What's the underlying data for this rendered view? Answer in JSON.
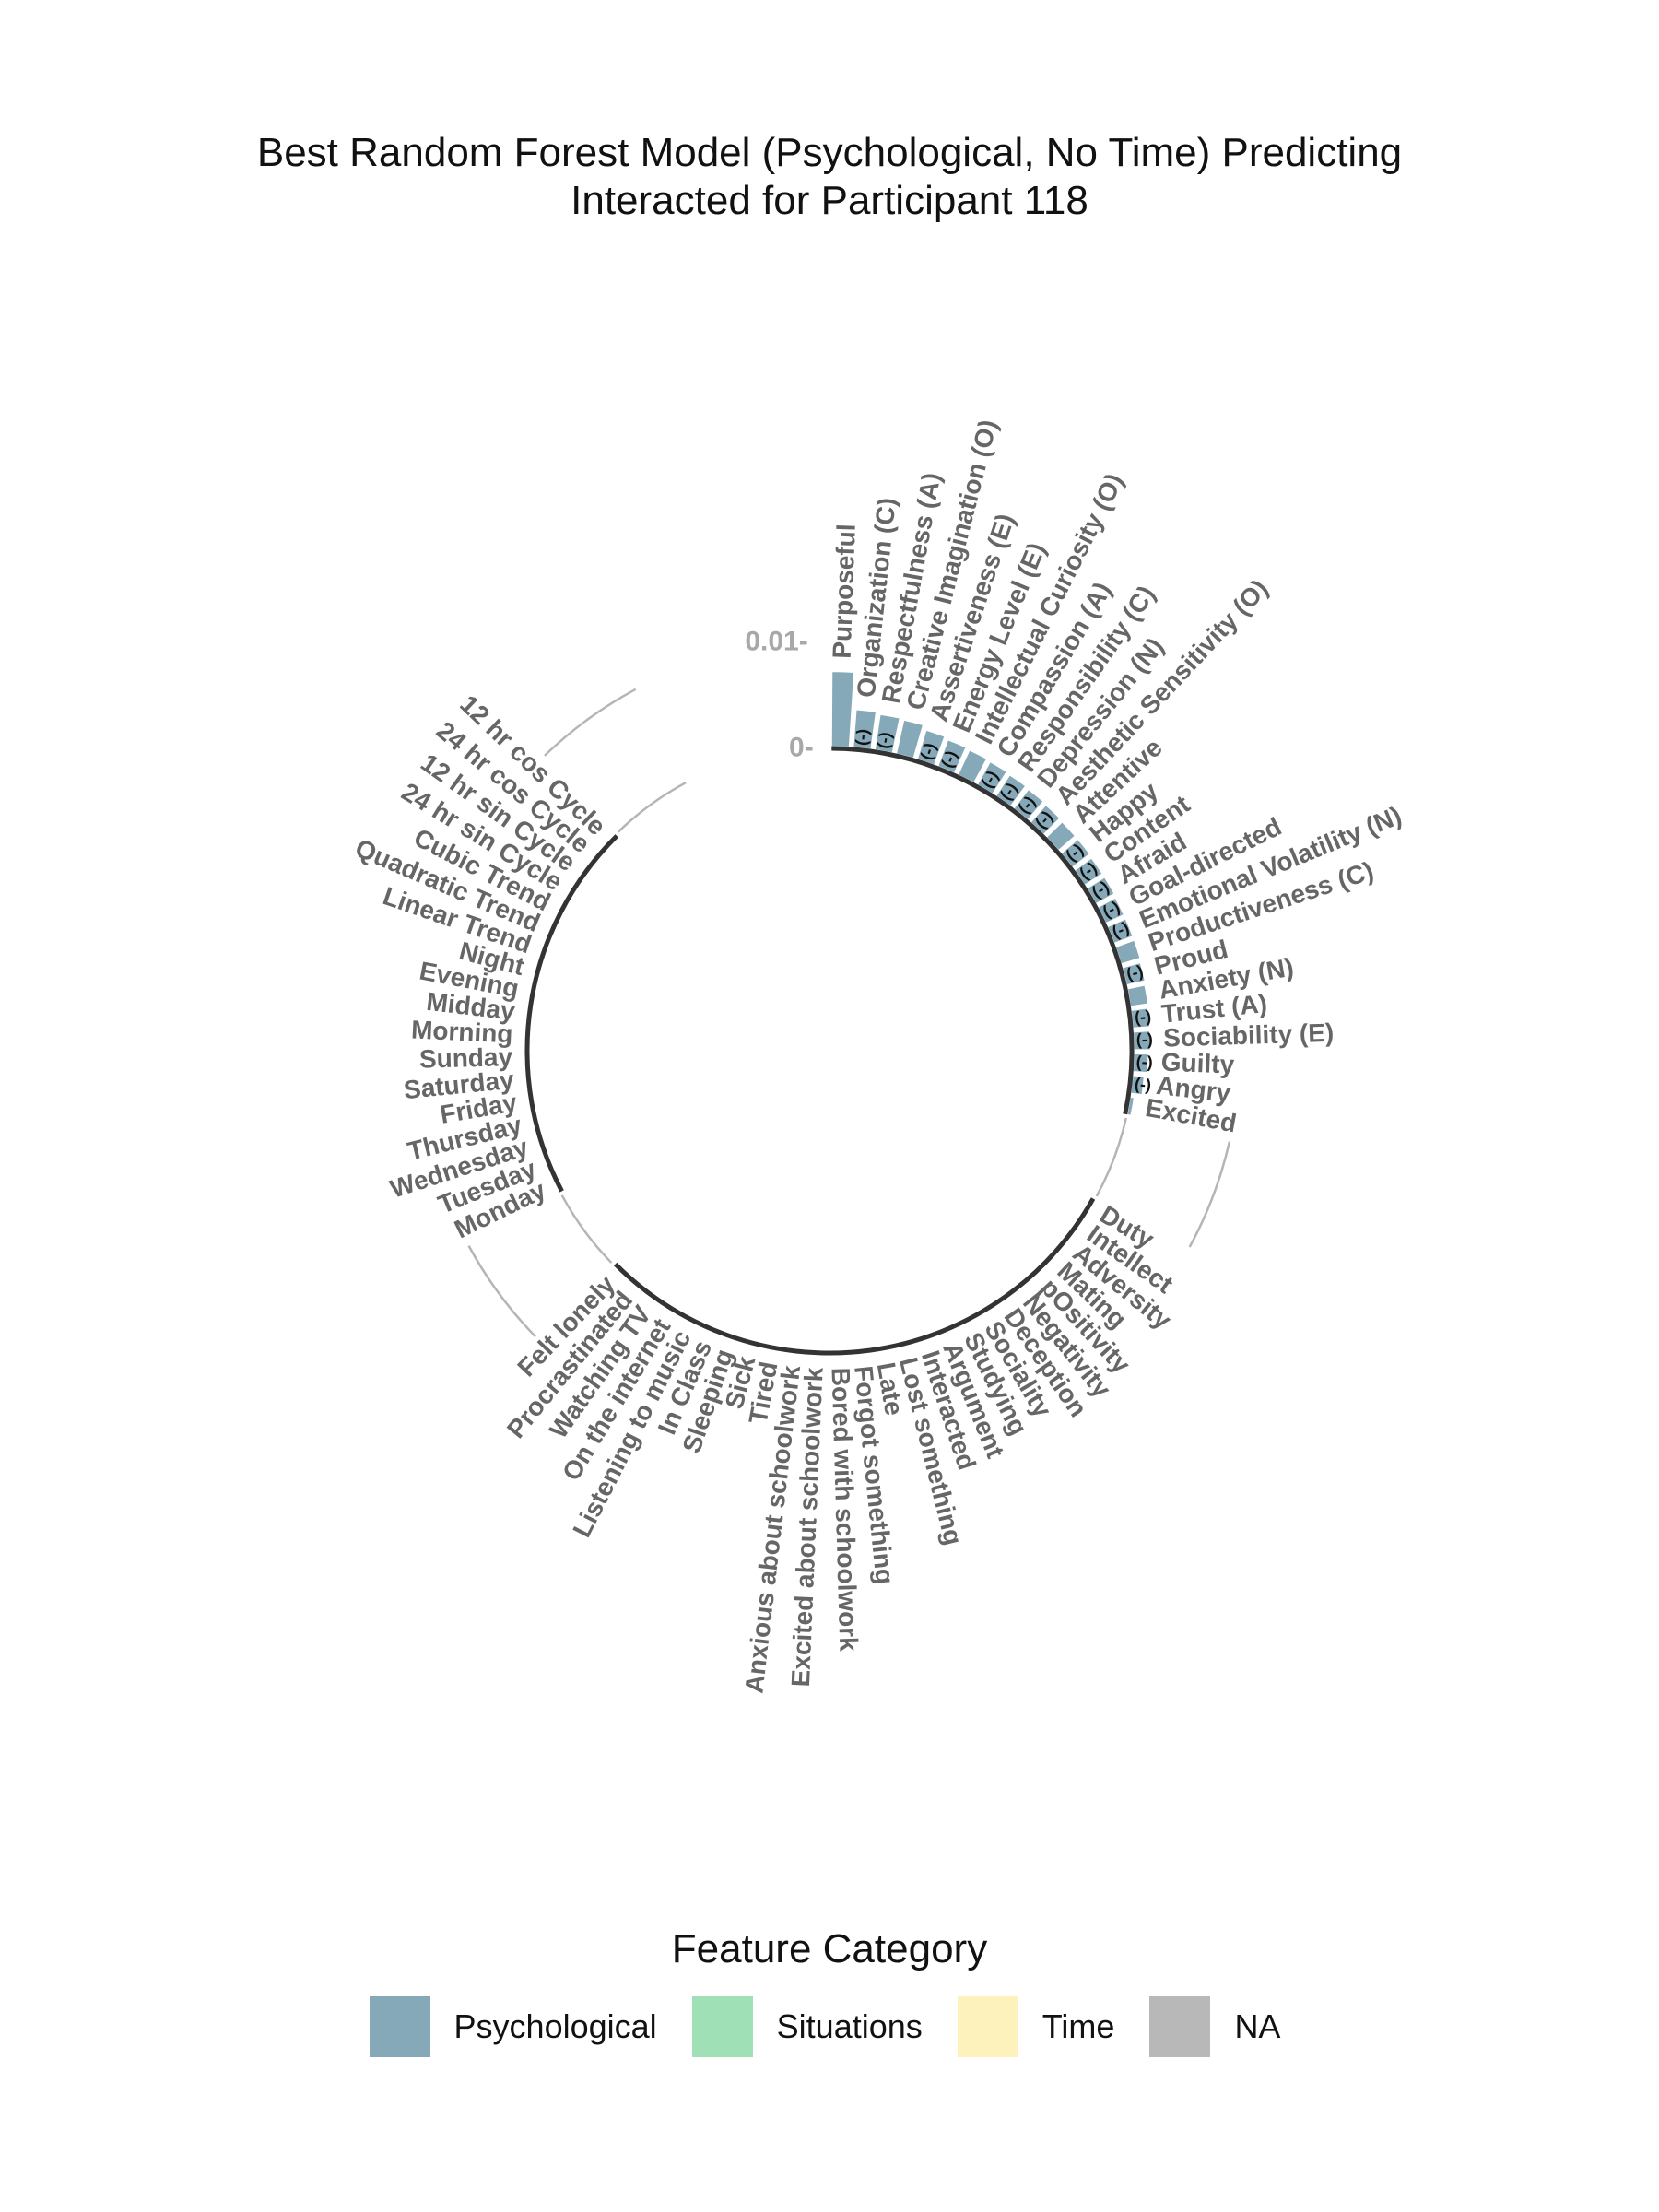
{
  "chart_title_line1": "Best Random Forest Model (Psychological, No Time) Predicting",
  "chart_title_line2": "Interacted for Participant 118",
  "legend": {
    "title": "Feature Category",
    "items": [
      {
        "label": "Psychological",
        "color": "#86a9b9"
      },
      {
        "label": "Situations",
        "color": "#9fe0b6"
      },
      {
        "label": "Time",
        "color": "#fdf1bc"
      },
      {
        "label": "NA",
        "color": "#b8b8b8"
      }
    ]
  },
  "chart_data": {
    "type": "bar",
    "coordinate": "polar",
    "title": "Best Random Forest Model (Psychological, No Time) Predicting Interacted for Participant 118",
    "radial_ticks": [
      {
        "value": 0,
        "label": "0-"
      },
      {
        "value": 0.01,
        "label": "0.01-"
      }
    ],
    "ylim": [
      0,
      0.01
    ],
    "groups": [
      {
        "category": "Psychological",
        "features": [
          {
            "name": "Purposeful",
            "value": 0.0071,
            "sign": ""
          },
          {
            "name": "Organization (C)",
            "value": 0.0036,
            "sign": "(-)"
          },
          {
            "name": "Respectfulness (A)",
            "value": 0.0034,
            "sign": "(-)"
          },
          {
            "name": "Creative Imagination (O)",
            "value": 0.0033,
            "sign": ""
          },
          {
            "name": "Assertiveness (E)",
            "value": 0.0029,
            "sign": "(-)"
          },
          {
            "name": "Energy Level (E)",
            "value": 0.0027,
            "sign": "(-)"
          },
          {
            "name": "Intellectual Curiosity (O)",
            "value": 0.0026,
            "sign": ""
          },
          {
            "name": "Compassion (A)",
            "value": 0.0025,
            "sign": "(-)"
          },
          {
            "name": "Responsibility (C)",
            "value": 0.0024,
            "sign": "(-)"
          },
          {
            "name": "Depression (N)",
            "value": 0.0023,
            "sign": "(-)"
          },
          {
            "name": "Aesthetic Sensitivity (O)",
            "value": 0.0022,
            "sign": "(-)"
          },
          {
            "name": "Attentive",
            "value": 0.0021,
            "sign": ""
          },
          {
            "name": "Happy",
            "value": 0.0021,
            "sign": "(-)"
          },
          {
            "name": "Content",
            "value": 0.002,
            "sign": "(-)"
          },
          {
            "name": "Afraid",
            "value": 0.002,
            "sign": "(-)"
          },
          {
            "name": "Goal-directed",
            "value": 0.0019,
            "sign": "(-)"
          },
          {
            "name": "Emotional Volatility (N)",
            "value": 0.0019,
            "sign": "(-)"
          },
          {
            "name": "Productiveness (C)",
            "value": 0.0019,
            "sign": ""
          },
          {
            "name": "Proud",
            "value": 0.0018,
            "sign": "(-)"
          },
          {
            "name": "Anxiety (N)",
            "value": 0.0017,
            "sign": ""
          },
          {
            "name": "Trust (A)",
            "value": 0.0016,
            "sign": "(-)"
          },
          {
            "name": "Sociability (E)",
            "value": 0.0016,
            "sign": "(-)"
          },
          {
            "name": "Guilty",
            "value": 0.0014,
            "sign": "(-)"
          },
          {
            "name": "Angry",
            "value": 0.0011,
            "sign": "(-)"
          },
          {
            "name": "Excited",
            "value": 0.0004,
            "sign": ""
          }
        ]
      },
      {
        "category": "Situations",
        "features": [
          {
            "name": "Duty",
            "value": 0,
            "sign": ""
          },
          {
            "name": "Intellect",
            "value": 0,
            "sign": ""
          },
          {
            "name": "Adversity",
            "value": 0,
            "sign": ""
          },
          {
            "name": "Mating",
            "value": 0,
            "sign": ""
          },
          {
            "name": "pOsitivity",
            "value": 0,
            "sign": ""
          },
          {
            "name": "Negativity",
            "value": 0,
            "sign": ""
          },
          {
            "name": "Deception",
            "value": 0,
            "sign": ""
          },
          {
            "name": "Sociality",
            "value": 0,
            "sign": ""
          },
          {
            "name": "Studying",
            "value": 0,
            "sign": ""
          },
          {
            "name": "Argument",
            "value": 0,
            "sign": ""
          },
          {
            "name": "Interacted",
            "value": 0,
            "sign": ""
          },
          {
            "name": "Lost something",
            "value": 0,
            "sign": ""
          },
          {
            "name": "Late",
            "value": 0,
            "sign": ""
          },
          {
            "name": "Forgot something",
            "value": 0,
            "sign": ""
          },
          {
            "name": "Bored with schoolwork",
            "value": 0,
            "sign": ""
          },
          {
            "name": "Excited about schoolwork",
            "value": 0,
            "sign": ""
          },
          {
            "name": "Anxious about schoolwork",
            "value": 0,
            "sign": ""
          },
          {
            "name": "Tired",
            "value": 0,
            "sign": ""
          },
          {
            "name": "Sick",
            "value": 0,
            "sign": ""
          },
          {
            "name": "Sleeping",
            "value": 0,
            "sign": ""
          },
          {
            "name": "In Class",
            "value": 0,
            "sign": ""
          },
          {
            "name": "Listening to music",
            "value": 0,
            "sign": ""
          },
          {
            "name": "On the internet",
            "value": 0,
            "sign": ""
          },
          {
            "name": "Watching TV",
            "value": 0,
            "sign": ""
          },
          {
            "name": "Procrastinated",
            "value": 0,
            "sign": ""
          },
          {
            "name": "Felt lonely",
            "value": 0,
            "sign": ""
          }
        ]
      },
      {
        "category": "Time",
        "features": [
          {
            "name": "Monday",
            "value": 0,
            "sign": ""
          },
          {
            "name": "Tuesday",
            "value": 0,
            "sign": ""
          },
          {
            "name": "Wednesday",
            "value": 0,
            "sign": ""
          },
          {
            "name": "Thursday",
            "value": 0,
            "sign": ""
          },
          {
            "name": "Friday",
            "value": 0,
            "sign": ""
          },
          {
            "name": "Saturday",
            "value": 0,
            "sign": ""
          },
          {
            "name": "Sunday",
            "value": 0,
            "sign": ""
          },
          {
            "name": "Morning",
            "value": 0,
            "sign": ""
          },
          {
            "name": "Midday",
            "value": 0,
            "sign": ""
          },
          {
            "name": "Evening",
            "value": 0,
            "sign": ""
          },
          {
            "name": "Night",
            "value": 0,
            "sign": ""
          },
          {
            "name": "Linear Trend",
            "value": 0,
            "sign": ""
          },
          {
            "name": "Quadratic Trend",
            "value": 0,
            "sign": ""
          },
          {
            "name": "Cubic Trend",
            "value": 0,
            "sign": ""
          },
          {
            "name": "24 hr sin Cycle",
            "value": 0,
            "sign": ""
          },
          {
            "name": "12 hr sin Cycle",
            "value": 0,
            "sign": ""
          },
          {
            "name": "24 hr cos Cycle",
            "value": 0,
            "sign": ""
          },
          {
            "name": "12 hr cos Cycle",
            "value": 0,
            "sign": ""
          }
        ]
      }
    ]
  }
}
